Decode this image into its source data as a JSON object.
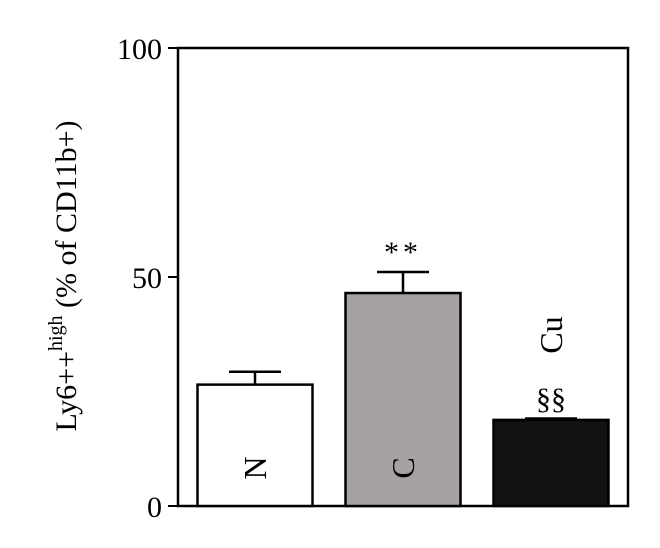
{
  "chart_data": {
    "type": "bar",
    "ylabel": {
      "main": "Ly6++",
      "superscript": "high",
      "suffix": " (% of CD11b+)"
    },
    "ylim": [
      0,
      100
    ],
    "yticks": [
      {
        "value": 0,
        "label": "0"
      },
      {
        "value": 50,
        "label": "50"
      },
      {
        "value": 100,
        "label": "100"
      }
    ],
    "grid": false,
    "bars": [
      {
        "category": "N",
        "value": 26.5,
        "error": 2.8,
        "fill": "#ffffff",
        "label_color": "#000000",
        "annotation_above": "",
        "annotation_top": ""
      },
      {
        "category": "C",
        "value": 46.5,
        "error": 4.6,
        "fill": "#a7a2a2",
        "label_color": "#000000",
        "annotation_above": "**",
        "annotation_top": ""
      },
      {
        "category": "Cu",
        "value": 18.8,
        "error": 0.3,
        "fill": "#121212",
        "label_color": "#000000",
        "annotation_above": "§§",
        "annotation_top": "Cu"
      }
    ]
  }
}
